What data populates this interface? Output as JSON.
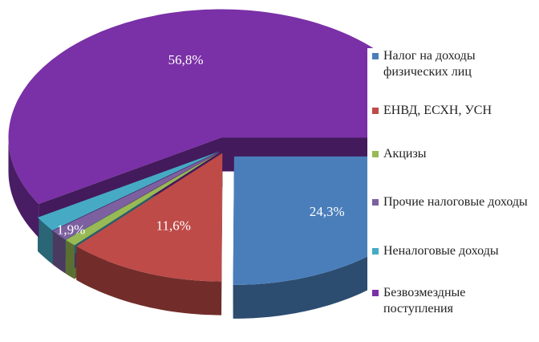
{
  "chart_data": {
    "type": "pie3d",
    "categories": [
      "Налог на доходы физических лиц",
      "ЕНВД, ЕСХН, УСН",
      "Акцизы",
      "Прочие налоговые доходы",
      "Неналоговые доходы",
      "Безвозмездные поступления"
    ],
    "values": [
      24.3,
      11.6,
      0.9,
      1.4,
      1.9,
      56.8
    ],
    "value_labels": [
      "24,3%",
      "11,6%",
      null,
      null,
      "1,9%",
      "56,8%"
    ],
    "colors": [
      "#4a7ebb",
      "#be4b48",
      "#98b954",
      "#7d60a0",
      "#46aac5",
      "#7a30a6"
    ],
    "legend": "right"
  }
}
